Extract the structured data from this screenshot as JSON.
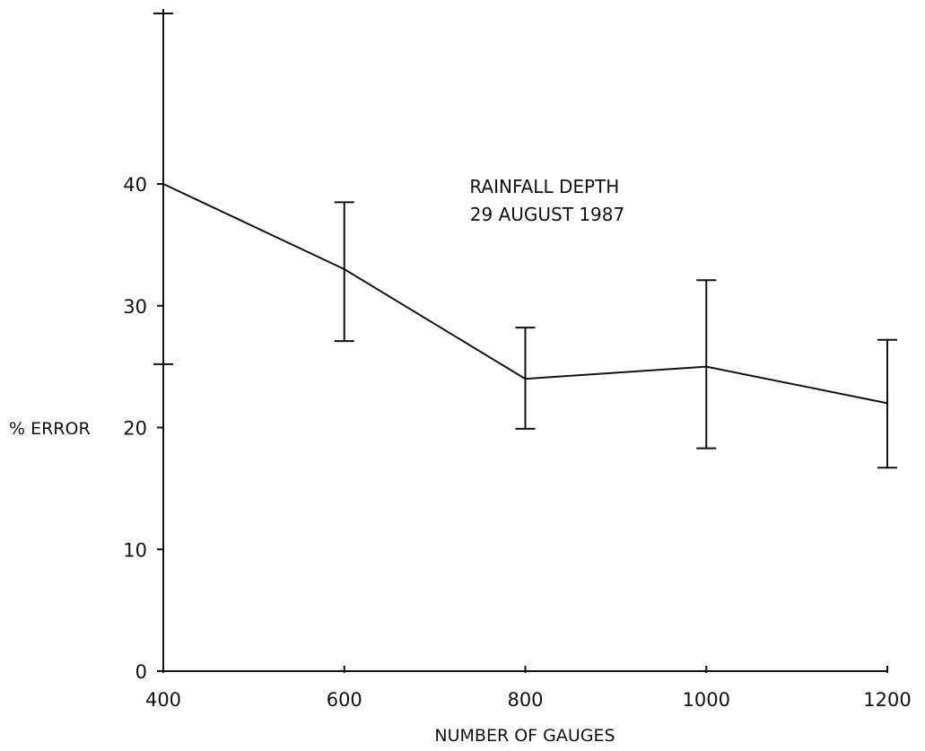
{
  "chart_data": {
    "type": "line",
    "title": "",
    "annotation_lines": [
      "RAINFALL DEPTH",
      "29 AUGUST 1987"
    ],
    "xlabel": "NUMBER OF GAUGES",
    "ylabel": "% ERROR",
    "x": [
      400,
      600,
      800,
      1000,
      1200
    ],
    "xlim": [
      400,
      1200
    ],
    "ylim": [
      0,
      40
    ],
    "x_ticks": [
      400,
      600,
      800,
      1000,
      1200
    ],
    "y_ticks": [
      0,
      10,
      20,
      30,
      40
    ],
    "grid": false,
    "series": [
      {
        "values": [
          40,
          33,
          24,
          25,
          22
        ],
        "error_upper": [
          54,
          38.5,
          28.2,
          32.1,
          27.2
        ],
        "error_lower": [
          25.2,
          27.1,
          19.9,
          18.3,
          16.7
        ]
      }
    ]
  }
}
